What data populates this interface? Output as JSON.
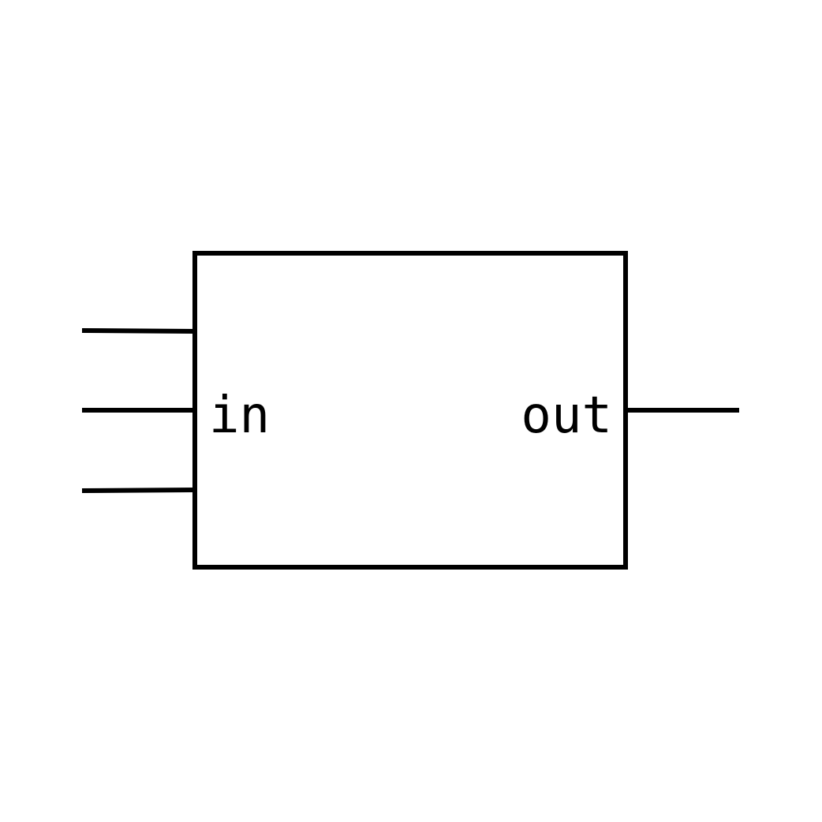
{
  "diagram": {
    "block": {
      "input_label": "in",
      "output_label": "out"
    },
    "input_wire_count": 3,
    "output_wire_count": 1,
    "colors": {
      "stroke": "#000000",
      "background": "#ffffff"
    }
  }
}
